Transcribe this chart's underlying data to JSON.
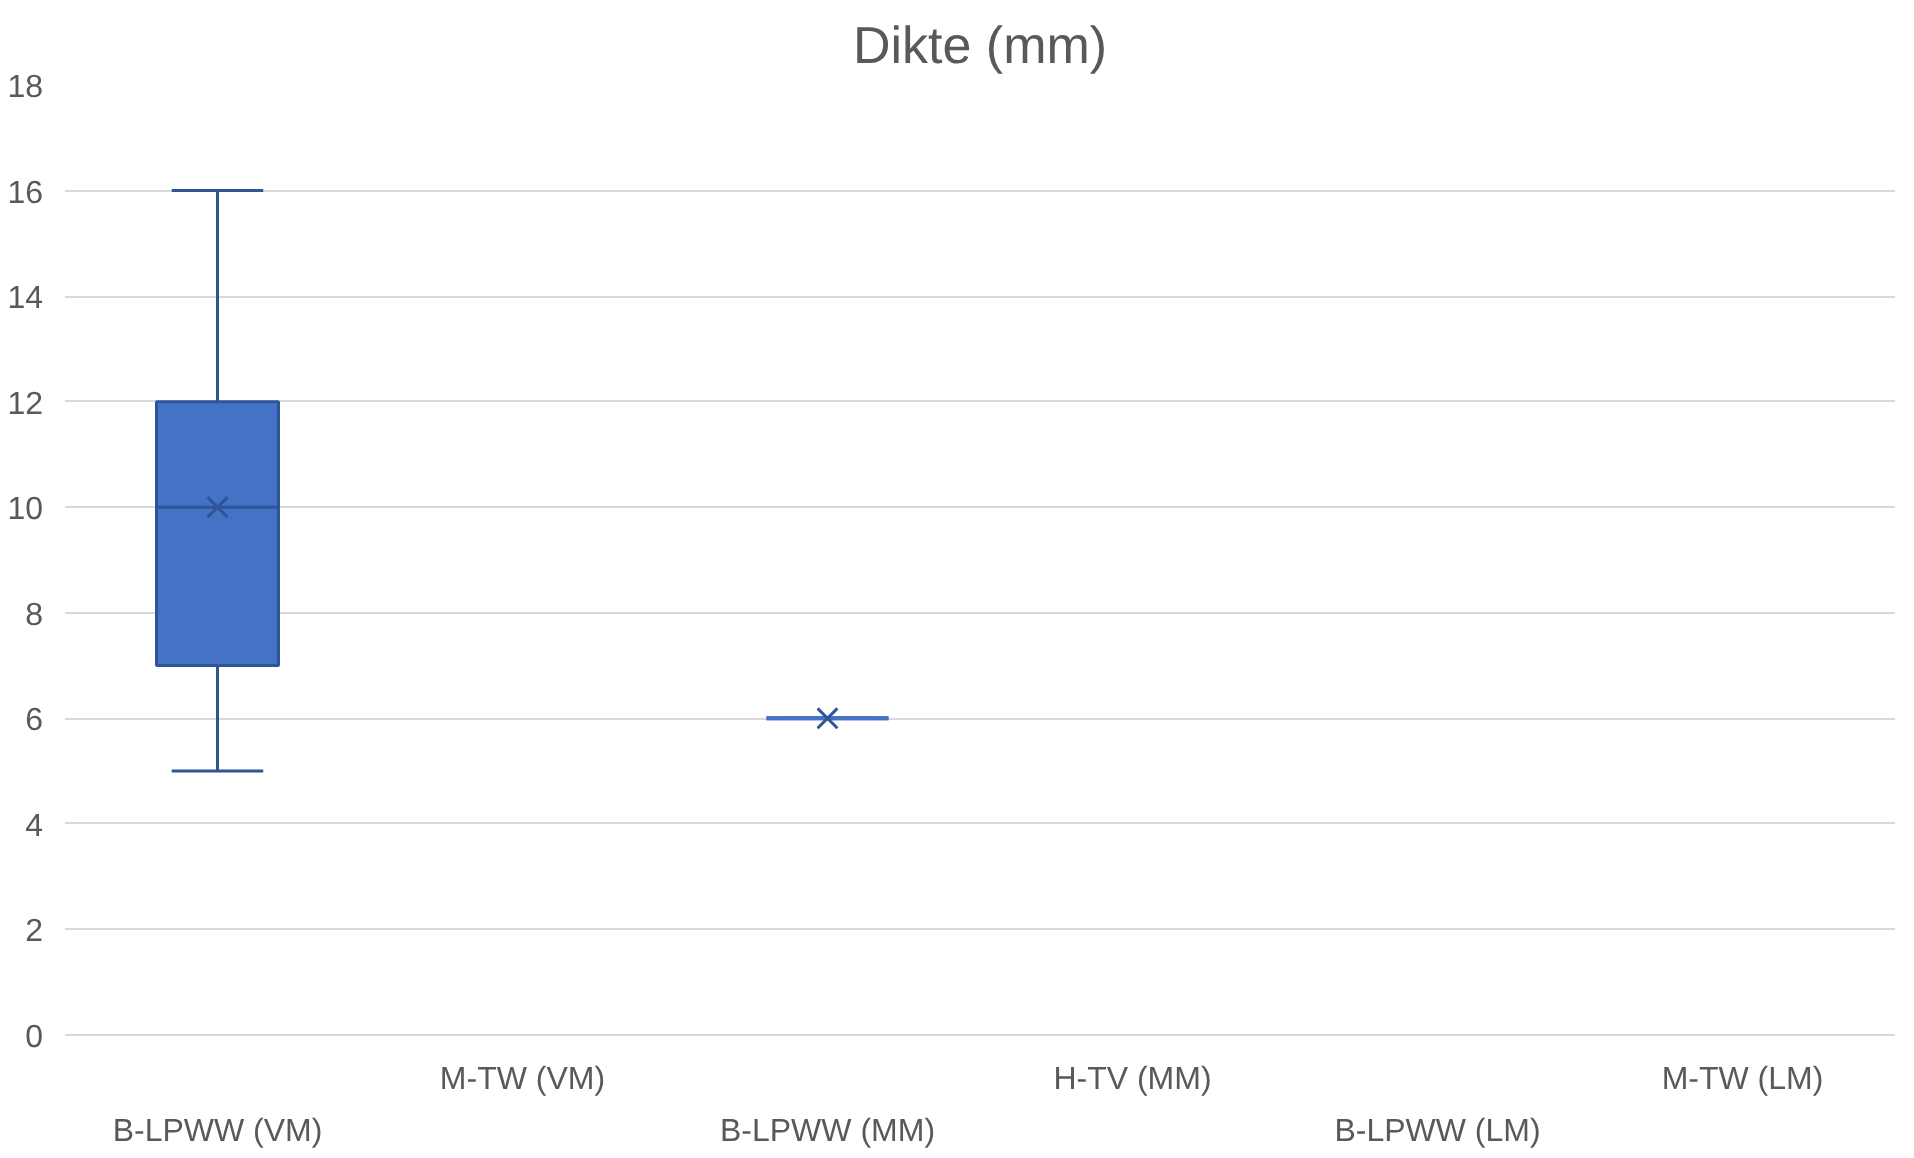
{
  "chart_data": {
    "type": "box",
    "title": "Dikte (mm)",
    "categories": [
      "B-LPWW (VM)",
      "M-TW (VM)",
      "B-LPWW (MM)",
      "H-TV (MM)",
      "B-LPWW (LM)",
      "M-TW (LM)"
    ],
    "boxes": [
      {
        "low": 5,
        "q1": 7,
        "median": 10,
        "q3": 12,
        "high": 16,
        "mean": 10
      },
      null,
      {
        "low": 6,
        "q1": 6,
        "median": 6,
        "q3": 6,
        "high": 6,
        "mean": 6
      },
      null,
      null,
      null
    ],
    "color": "#4472c4",
    "ylim": [
      0,
      18
    ],
    "yticks": [
      0,
      2,
      4,
      6,
      8,
      10,
      12,
      14,
      16,
      18
    ],
    "grid": "y"
  }
}
